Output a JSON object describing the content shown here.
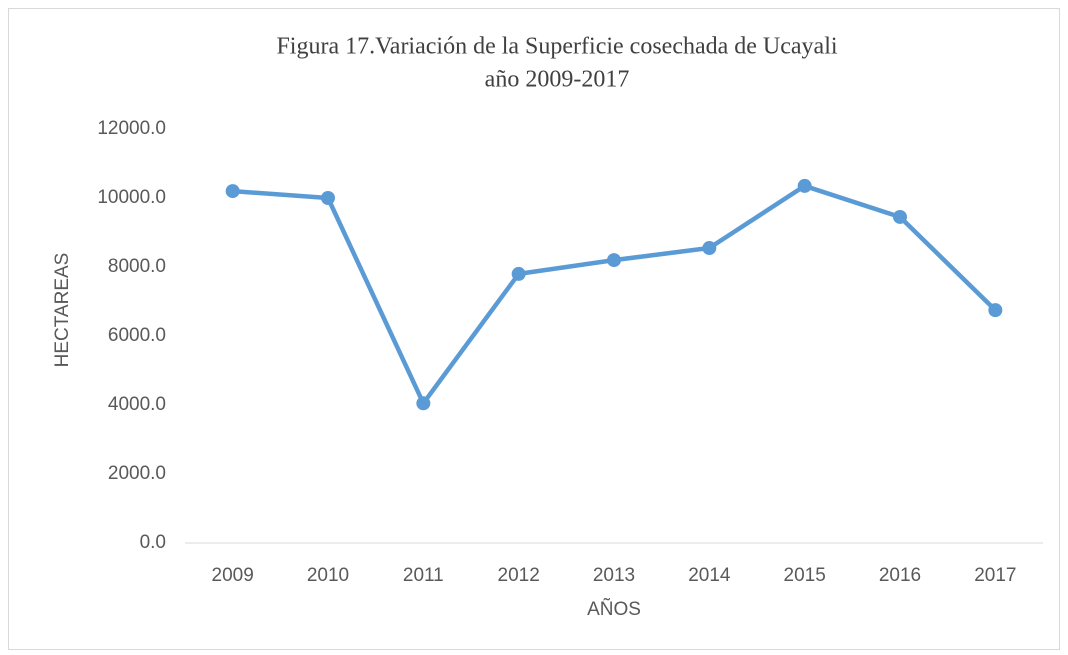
{
  "chart_data": {
    "type": "line",
    "title": "Figura 17.Variación de la Superficie cosechada de Ucayali",
    "subtitle": "año 2009-2017",
    "x_label": "AÑOS",
    "y_label": "HECTAREAS",
    "categories": [
      "2009",
      "2010",
      "2011",
      "2012",
      "2013",
      "2014",
      "2015",
      "2016",
      "2017"
    ],
    "series": [
      {
        "name": "Superficie cosechada",
        "color": "#5b9bd5",
        "values": [
          10200,
          10000,
          4050,
          7800,
          8200,
          8550,
          10350,
          9450,
          6750
        ]
      }
    ],
    "ylim": [
      0,
      12000
    ],
    "yticks": [
      {
        "value": 0,
        "label": "0.0"
      },
      {
        "value": 2000,
        "label": "2000.0"
      },
      {
        "value": 4000,
        "label": "4000.0"
      },
      {
        "value": 6000,
        "label": "6000.0"
      },
      {
        "value": 8000,
        "label": "8000.0"
      },
      {
        "value": 10000,
        "label": "10000.0"
      },
      {
        "value": 12000,
        "label": "12000.0"
      }
    ],
    "grid": false
  }
}
